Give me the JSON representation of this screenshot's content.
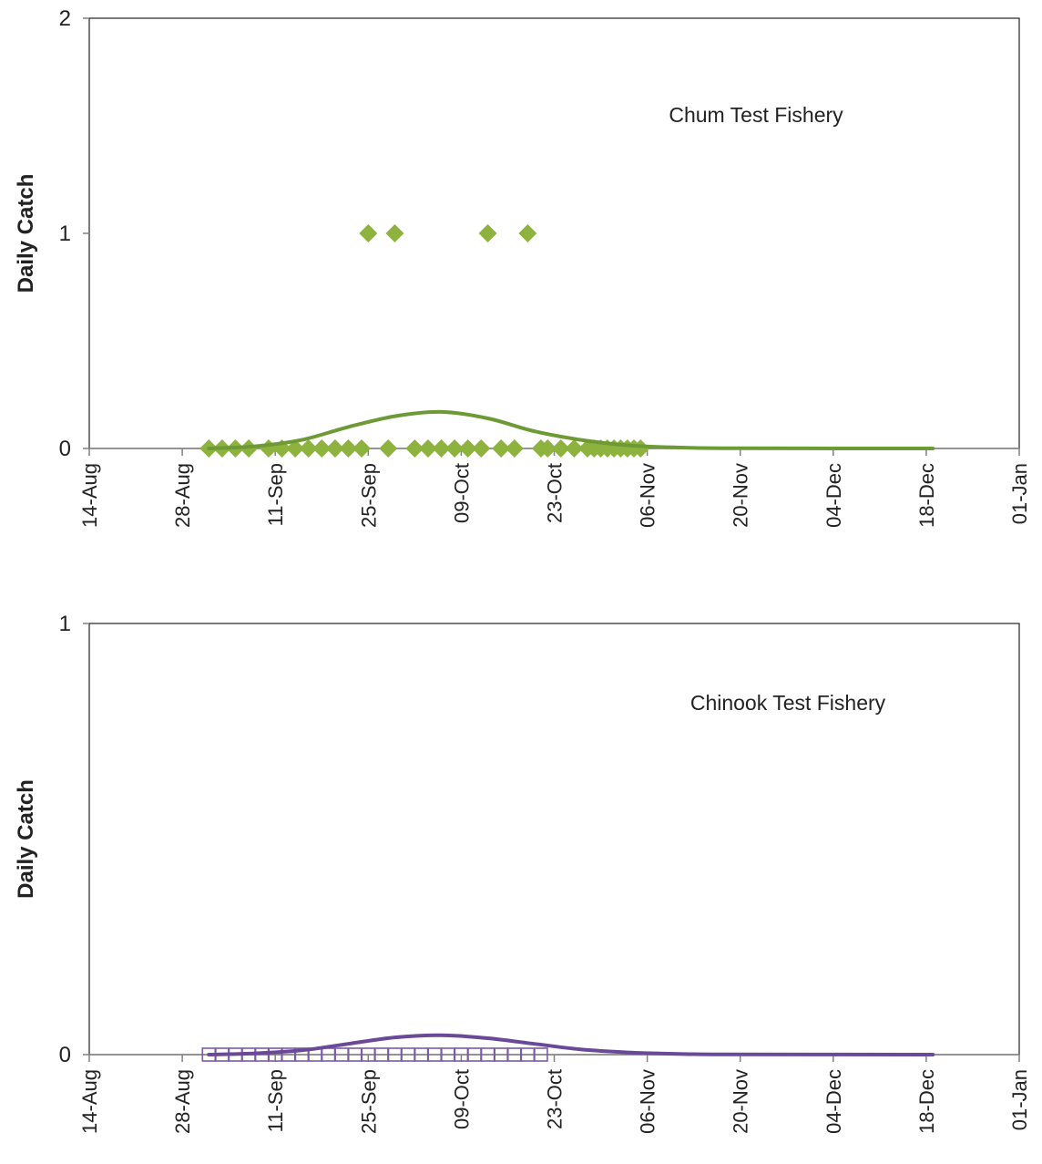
{
  "colors": {
    "chum": "#8DB33E",
    "chum_line": "#6E9A35",
    "chinook": "#7A5BA8",
    "chinook_line": "#6A4A98",
    "axis": "#808080",
    "frame": "#222222"
  },
  "chart_data": [
    {
      "type": "scatter",
      "title": "",
      "annotation": "Chum Test Fishery",
      "ylabel": "Daily Catch",
      "xlabel": "",
      "x_ticks": [
        "14-Aug",
        "28-Aug",
        "11-Sep",
        "25-Sep",
        "09-Oct",
        "23-Oct",
        "06-Nov",
        "20-Nov",
        "04-Dec",
        "18-Dec",
        "01-Jan"
      ],
      "xlim": [
        "14-Aug",
        "01-Jan"
      ],
      "y_ticks": [
        "0",
        "1",
        "2"
      ],
      "ylim": [
        0,
        2
      ],
      "grid": false,
      "series": [
        {
          "marker": "diamond",
          "points": [
            {
              "x": "01-Sep",
              "y": 0
            },
            {
              "x": "03-Sep",
              "y": 0
            },
            {
              "x": "05-Sep",
              "y": 0
            },
            {
              "x": "07-Sep",
              "y": 0
            },
            {
              "x": "10-Sep",
              "y": 0
            },
            {
              "x": "12-Sep",
              "y": 0
            },
            {
              "x": "14-Sep",
              "y": 0
            },
            {
              "x": "16-Sep",
              "y": 0
            },
            {
              "x": "18-Sep",
              "y": 0
            },
            {
              "x": "20-Sep",
              "y": 0
            },
            {
              "x": "22-Sep",
              "y": 0
            },
            {
              "x": "24-Sep",
              "y": 0
            },
            {
              "x": "25-Sep",
              "y": 1
            },
            {
              "x": "28-Sep",
              "y": 0
            },
            {
              "x": "29-Sep",
              "y": 1
            },
            {
              "x": "02-Oct",
              "y": 0
            },
            {
              "x": "04-Oct",
              "y": 0
            },
            {
              "x": "06-Oct",
              "y": 0
            },
            {
              "x": "08-Oct",
              "y": 0
            },
            {
              "x": "10-Oct",
              "y": 0
            },
            {
              "x": "12-Oct",
              "y": 0
            },
            {
              "x": "13-Oct",
              "y": 1
            },
            {
              "x": "15-Oct",
              "y": 0
            },
            {
              "x": "17-Oct",
              "y": 0
            },
            {
              "x": "19-Oct",
              "y": 1
            },
            {
              "x": "21-Oct",
              "y": 0
            },
            {
              "x": "22-Oct",
              "y": 0
            },
            {
              "x": "24-Oct",
              "y": 0
            },
            {
              "x": "26-Oct",
              "y": 0
            },
            {
              "x": "28-Oct",
              "y": 0
            },
            {
              "x": "29-Oct",
              "y": 0
            },
            {
              "x": "30-Oct",
              "y": 0
            },
            {
              "x": "31-Oct",
              "y": 0
            },
            {
              "x": "01-Nov",
              "y": 0
            },
            {
              "x": "02-Nov",
              "y": 0
            },
            {
              "x": "03-Nov",
              "y": 0
            },
            {
              "x": "04-Nov",
              "y": 0
            },
            {
              "x": "05-Nov",
              "y": 0
            }
          ]
        },
        {
          "marker": "line",
          "points": [
            {
              "x": "01-Sep",
              "y": 0
            },
            {
              "x": "08-Sep",
              "y": 0.01
            },
            {
              "x": "15-Sep",
              "y": 0.04
            },
            {
              "x": "22-Sep",
              "y": 0.1
            },
            {
              "x": "29-Sep",
              "y": 0.15
            },
            {
              "x": "06-Oct",
              "y": 0.17
            },
            {
              "x": "13-Oct",
              "y": 0.14
            },
            {
              "x": "20-Oct",
              "y": 0.08
            },
            {
              "x": "27-Oct",
              "y": 0.04
            },
            {
              "x": "03-Nov",
              "y": 0.015
            },
            {
              "x": "10-Nov",
              "y": 0.005
            },
            {
              "x": "20-Nov",
              "y": 0.001
            },
            {
              "x": "19-Dec",
              "y": 0
            }
          ]
        }
      ]
    },
    {
      "type": "scatter",
      "title": "",
      "annotation": "Chinook Test Fishery",
      "ylabel": "Daily Catch",
      "xlabel": "",
      "x_ticks": [
        "14-Aug",
        "28-Aug",
        "11-Sep",
        "25-Sep",
        "09-Oct",
        "23-Oct",
        "06-Nov",
        "20-Nov",
        "04-Dec",
        "18-Dec",
        "01-Jan"
      ],
      "xlim": [
        "14-Aug",
        "01-Jan"
      ],
      "y_ticks": [
        "0",
        "1"
      ],
      "ylim": [
        0,
        1
      ],
      "grid": false,
      "series": [
        {
          "marker": "square",
          "points": [
            {
              "x": "01-Sep",
              "y": 0
            },
            {
              "x": "03-Sep",
              "y": 0
            },
            {
              "x": "05-Sep",
              "y": 0
            },
            {
              "x": "07-Sep",
              "y": 0
            },
            {
              "x": "09-Sep",
              "y": 0
            },
            {
              "x": "11-Sep",
              "y": 0
            },
            {
              "x": "13-Sep",
              "y": 0
            },
            {
              "x": "15-Sep",
              "y": 0
            },
            {
              "x": "17-Sep",
              "y": 0
            },
            {
              "x": "19-Sep",
              "y": 0
            },
            {
              "x": "21-Sep",
              "y": 0
            },
            {
              "x": "23-Sep",
              "y": 0
            },
            {
              "x": "25-Sep",
              "y": 0
            },
            {
              "x": "27-Sep",
              "y": 0
            },
            {
              "x": "29-Sep",
              "y": 0
            },
            {
              "x": "01-Oct",
              "y": 0
            },
            {
              "x": "03-Oct",
              "y": 0
            },
            {
              "x": "05-Oct",
              "y": 0
            },
            {
              "x": "07-Oct",
              "y": 0
            },
            {
              "x": "09-Oct",
              "y": 0
            },
            {
              "x": "11-Oct",
              "y": 0
            },
            {
              "x": "13-Oct",
              "y": 0
            },
            {
              "x": "15-Oct",
              "y": 0
            },
            {
              "x": "17-Oct",
              "y": 0
            },
            {
              "x": "19-Oct",
              "y": 0
            },
            {
              "x": "21-Oct",
              "y": 0
            }
          ]
        },
        {
          "marker": "line",
          "points": [
            {
              "x": "01-Sep",
              "y": 0
            },
            {
              "x": "08-Sep",
              "y": 0.003
            },
            {
              "x": "15-Sep",
              "y": 0.01
            },
            {
              "x": "22-Sep",
              "y": 0.025
            },
            {
              "x": "29-Sep",
              "y": 0.04
            },
            {
              "x": "06-Oct",
              "y": 0.045
            },
            {
              "x": "13-Oct",
              "y": 0.038
            },
            {
              "x": "20-Oct",
              "y": 0.025
            },
            {
              "x": "27-Oct",
              "y": 0.012
            },
            {
              "x": "03-Nov",
              "y": 0.005
            },
            {
              "x": "10-Nov",
              "y": 0.002
            },
            {
              "x": "18-Nov",
              "y": 0.0005
            },
            {
              "x": "19-Dec",
              "y": 0
            }
          ]
        }
      ]
    }
  ]
}
